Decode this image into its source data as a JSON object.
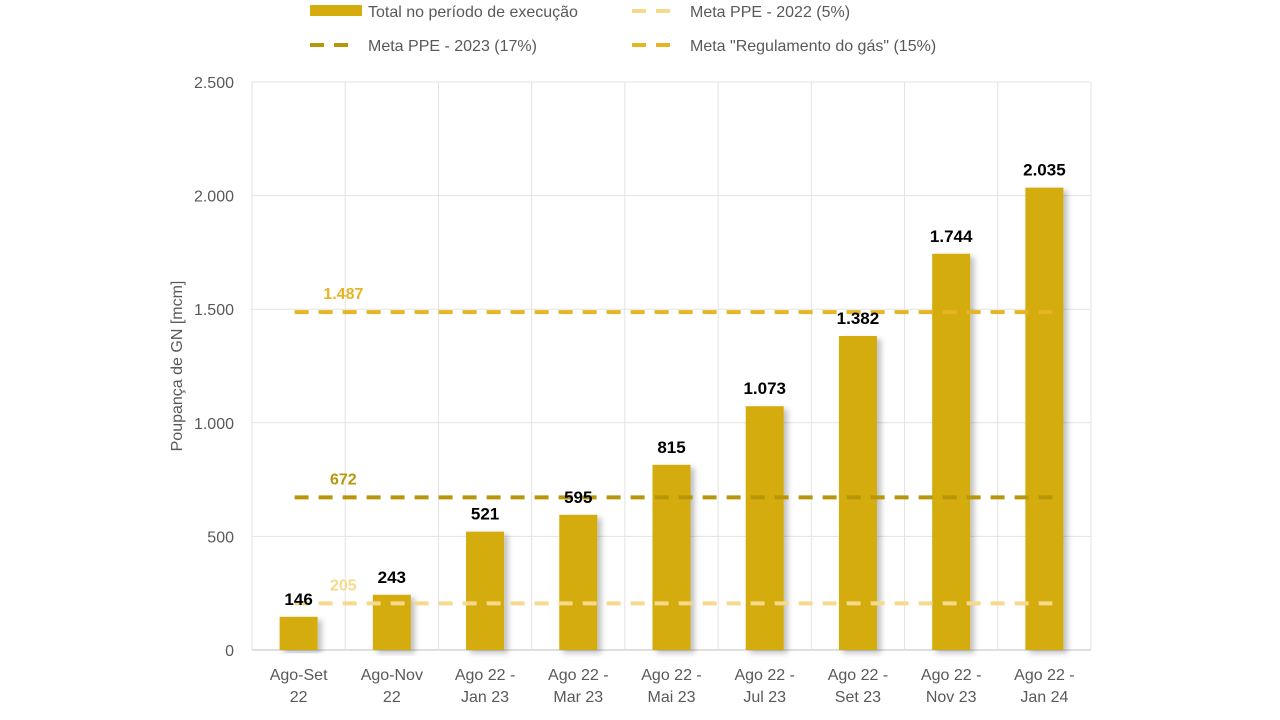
{
  "chart_data": {
    "type": "bar",
    "categories": [
      [
        "Ago-Set",
        "22"
      ],
      [
        "Ago-Nov",
        "22"
      ],
      [
        "Ago 22 -",
        "Jan 23"
      ],
      [
        "Ago 22 -",
        "Mar 23"
      ],
      [
        "Ago 22 -",
        "Mai 23"
      ],
      [
        "Ago 22 -",
        "Jul 23"
      ],
      [
        "Ago 22 -",
        "Set 23"
      ],
      [
        "Ago 22 -",
        "Nov 23"
      ],
      [
        "Ago 22 -",
        "Jan 24"
      ]
    ],
    "series": [
      {
        "name": "Total no período de execução",
        "color": "#D4AC0D",
        "values": [
          146,
          243,
          521,
          595,
          815,
          1073,
          1382,
          1744,
          2035
        ],
        "labels": [
          "146",
          "243",
          "521",
          "595",
          "815",
          "1.073",
          "1.382",
          "1.744",
          "2.035"
        ]
      }
    ],
    "reference_lines": [
      {
        "name": "Meta PPE - 2022 (5%)",
        "value": 205,
        "label": "205",
        "color": "#F7D98B",
        "style": "dashed"
      },
      {
        "name": "Meta PPE - 2023 (17%)",
        "value": 672,
        "label": "672",
        "color": "#B8960A",
        "style": "dashed"
      },
      {
        "name": "Meta \"Regulamento do gás\" (15%)",
        "value": 1487,
        "label": "1.487",
        "color": "#E6B523",
        "style": "dashed"
      }
    ],
    "ylabel": "Poupança de GN [mcm]",
    "xlabel": "",
    "title": "",
    "ylim": [
      0,
      2500
    ],
    "yticks": [
      0,
      500,
      1000,
      1500,
      2000,
      2500
    ],
    "ytick_labels": [
      "0",
      "500",
      "1.000",
      "1.500",
      "2.000",
      "2.500"
    ],
    "grid": true,
    "legend_position": "top"
  }
}
